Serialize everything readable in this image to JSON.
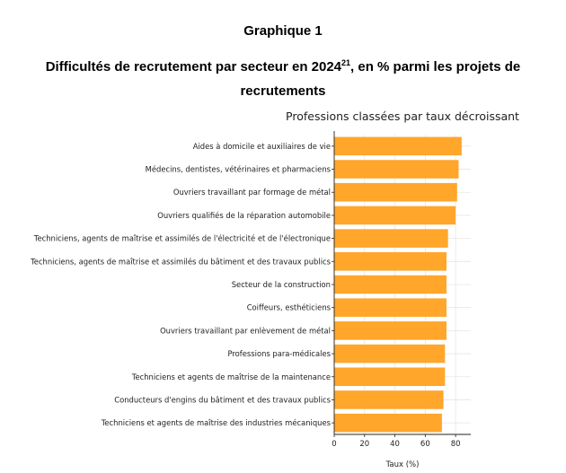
{
  "header": {
    "graph_label": "Graphique 1",
    "title_main": "Difficultés de recrutement par secteur en 2024",
    "title_sup": "21",
    "title_rest": ", en % parmi les projets de recrutements"
  },
  "colors": {
    "bar": "#FFA62B",
    "grid": "#e6e6e6",
    "axis": "#222222"
  },
  "chart_data": {
    "type": "bar",
    "orientation": "horizontal",
    "title": "Professions classées par taux décroissant",
    "xlabel": "Taux (%)",
    "ylabel": "",
    "xlim": [
      0,
      90
    ],
    "xticks": [
      0,
      20,
      40,
      60,
      80
    ],
    "grid": true,
    "categories": [
      "Aides à domicile et auxiliaires de vie",
      "Médecins, dentistes, vétérinaires et pharmaciens",
      "Ouvriers travaillant par formage de métal",
      "Ouvriers qualifiés de la réparation automobile",
      "Techniciens, agents de maîtrise et assimilés de l'électricité et de l'électronique",
      "Techniciens, agents de maîtrise et assimilés du bâtiment et des travaux publics",
      "Secteur de la construction",
      "Coiffeurs, esthéticiens",
      "Ouvriers travaillant par enlèvement de métal",
      "Professions para-médicales",
      "Techniciens et agents de maîtrise de la maintenance",
      "Conducteurs d'engins du bâtiment et des travaux publics",
      "Techniciens et agents de maîtrise des industries mécaniques"
    ],
    "values": [
      84,
      82,
      81,
      80,
      75,
      74,
      74,
      74,
      74,
      73,
      73,
      72,
      71
    ]
  }
}
